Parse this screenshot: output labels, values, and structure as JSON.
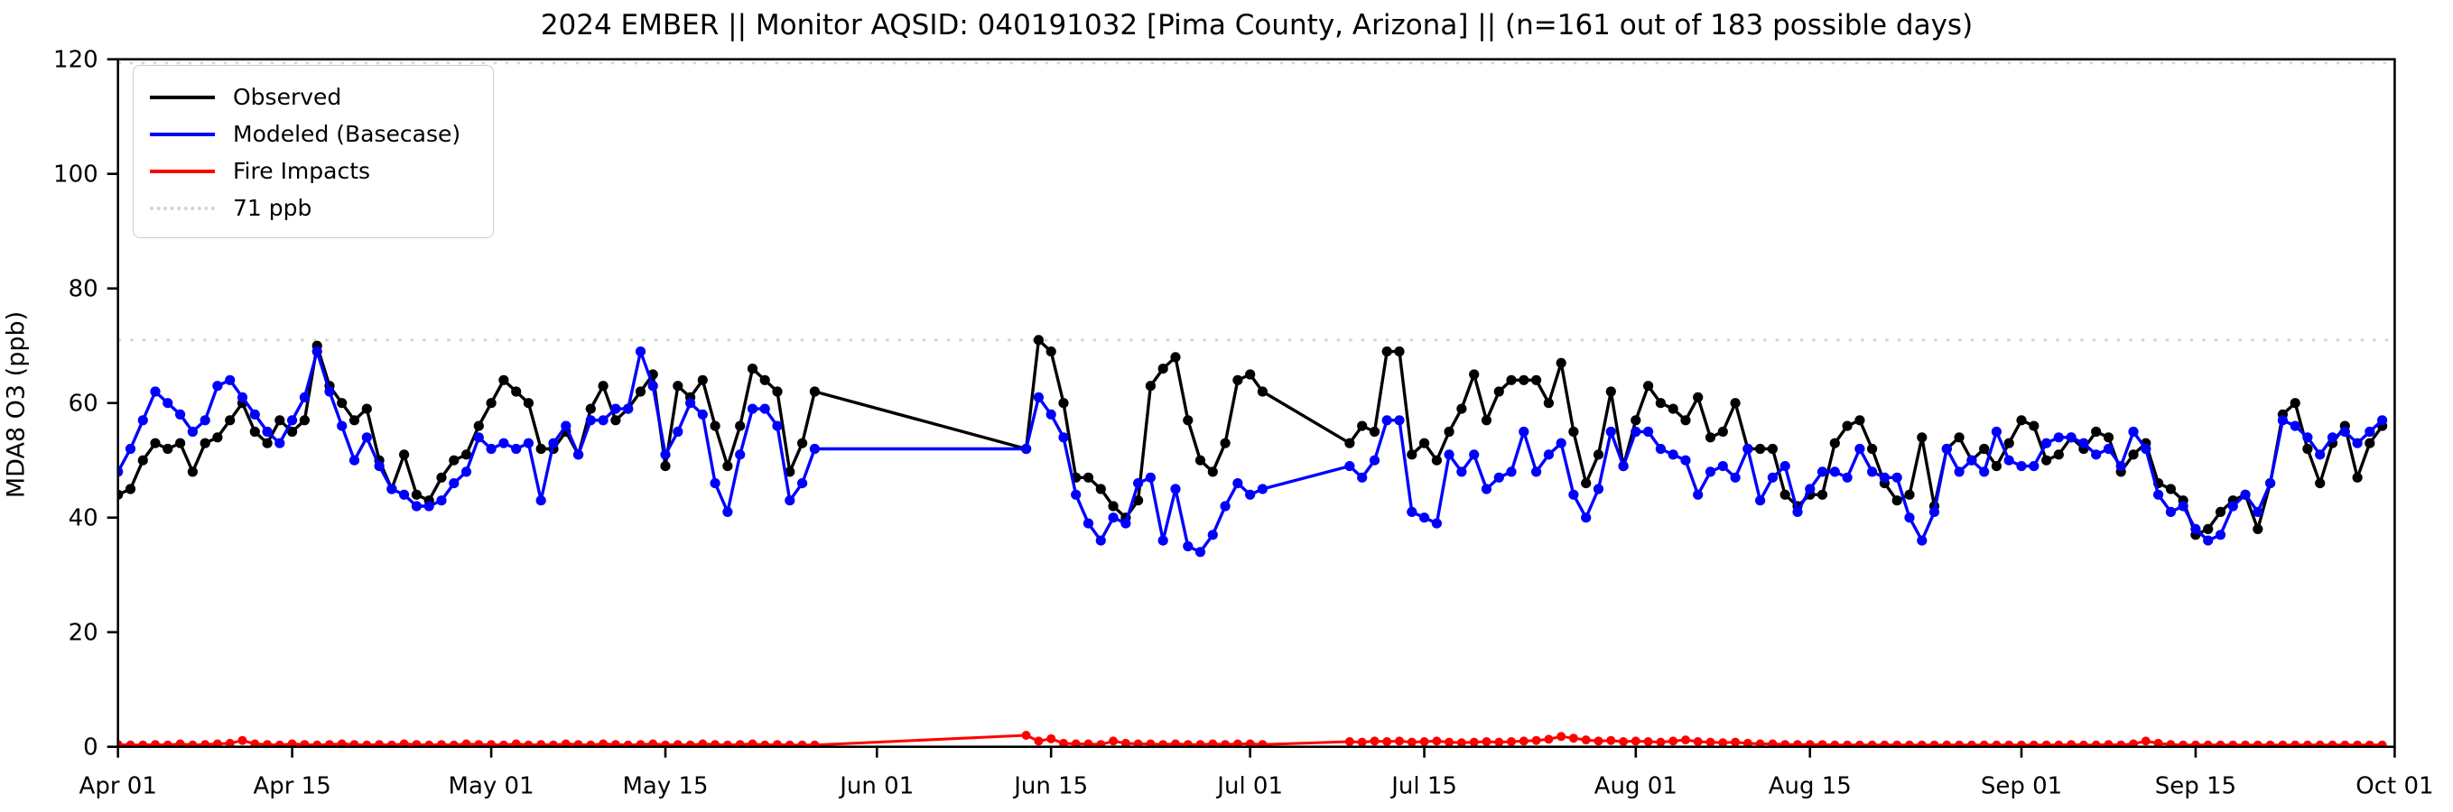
{
  "title": "2024 EMBER || Monitor AQSID: 040191032 [Pima County, Arizona] || (n=161 out of 183 possible days)",
  "axes": {
    "ylabel": "MDA8 O3 (ppb)",
    "ylim": [
      0,
      120
    ],
    "yticks": [
      0,
      20,
      40,
      60,
      80,
      100,
      120
    ],
    "xtick_labels": [
      "Apr 01",
      "Apr 15",
      "May 01",
      "May 15",
      "Jun 01",
      "Jun 15",
      "Jul 01",
      "Jul 15",
      "Aug 01",
      "Aug 15",
      "Sep 01",
      "Sep 15",
      "Oct 01"
    ],
    "xtick_day_index": [
      0,
      14,
      30,
      44,
      61,
      75,
      91,
      105,
      122,
      136,
      153,
      167,
      183
    ],
    "threshold_ppb": 71,
    "threshold_color": "#d4d4d4",
    "grid": false
  },
  "legend": {
    "position": "upper-left",
    "items": [
      {
        "label": "Observed",
        "color": "#000000",
        "style": "solid"
      },
      {
        "label": "Modeled (Basecase)",
        "color": "#0000ff",
        "style": "solid"
      },
      {
        "label": "Fire Impacts",
        "color": "#ff0000",
        "style": "solid"
      },
      {
        "label": "71 ppb",
        "color": "#d4d4d4",
        "style": "dotted"
      }
    ]
  },
  "chart_data": {
    "type": "line",
    "title": "2024 EMBER || Monitor AQSID: 040191032 [Pima County, Arizona] || (n=161 out of 183 possible days)",
    "xlabel": "",
    "ylabel": "MDA8 O3 (ppb)",
    "ylim": [
      0,
      120
    ],
    "x_start_label": "Apr 01",
    "x_end_label": "Oct 01",
    "n_days": 183,
    "n_observed_days": 161,
    "missing_day_ranges": [
      "May 28 - Jun 12",
      "Jul 03 - Jul 08"
    ],
    "threshold_line_ppb": 71,
    "legend_position": "upper left",
    "marker": "circle",
    "series": [
      {
        "name": "Observed",
        "color": "#000000",
        "values": [
          44,
          45,
          50,
          53,
          52,
          53,
          48,
          53,
          54,
          57,
          60,
          55,
          53,
          57,
          55,
          57,
          70,
          63,
          60,
          57,
          59,
          50,
          45,
          51,
          44,
          43,
          47,
          50,
          51,
          56,
          60,
          64,
          62,
          60,
          52,
          52,
          55,
          51,
          59,
          63,
          57,
          59,
          62,
          65,
          49,
          63,
          61,
          64,
          56,
          49,
          56,
          66,
          64,
          62,
          48,
          53,
          62,
          null,
          null,
          null,
          null,
          null,
          null,
          null,
          null,
          null,
          null,
          null,
          null,
          null,
          null,
          null,
          null,
          52,
          71,
          69,
          60,
          47,
          47,
          45,
          42,
          40,
          43,
          63,
          66,
          68,
          57,
          50,
          48,
          53,
          64,
          65,
          62,
          null,
          null,
          null,
          null,
          null,
          null,
          53,
          56,
          55,
          69,
          69,
          51,
          53,
          50,
          55,
          59,
          65,
          57,
          62,
          64,
          64,
          64,
          60,
          67,
          55,
          46,
          51,
          62,
          49,
          57,
          63,
          60,
          59,
          57,
          61,
          54,
          55,
          60,
          52,
          52,
          52,
          44,
          42,
          44,
          44,
          53,
          56,
          57,
          52,
          46,
          43,
          44,
          54,
          42,
          52,
          54,
          50,
          52,
          49,
          53,
          57,
          56,
          50,
          51,
          54,
          52,
          55,
          54,
          48,
          51,
          53,
          46,
          45,
          43,
          37,
          38,
          41,
          43,
          44,
          38,
          46,
          58,
          60,
          52,
          46,
          53,
          56,
          47,
          53,
          56
        ]
      },
      {
        "name": "Modeled (Basecase)",
        "color": "#0000ff",
        "values": [
          48,
          52,
          57,
          62,
          60,
          58,
          55,
          57,
          63,
          64,
          61,
          58,
          55,
          53,
          57,
          61,
          69,
          62,
          56,
          50,
          54,
          49,
          45,
          44,
          42,
          42,
          43,
          46,
          48,
          54,
          52,
          53,
          52,
          53,
          43,
          53,
          56,
          51,
          57,
          57,
          59,
          59,
          69,
          63,
          51,
          55,
          60,
          58,
          46,
          41,
          51,
          59,
          59,
          56,
          43,
          46,
          52,
          null,
          null,
          null,
          null,
          null,
          null,
          null,
          null,
          null,
          null,
          null,
          null,
          null,
          null,
          null,
          null,
          52,
          61,
          58,
          54,
          44,
          39,
          36,
          40,
          39,
          46,
          47,
          36,
          45,
          35,
          34,
          37,
          42,
          46,
          44,
          45,
          null,
          null,
          null,
          null,
          null,
          null,
          49,
          47,
          50,
          57,
          57,
          41,
          40,
          39,
          51,
          48,
          51,
          45,
          47,
          48,
          55,
          48,
          51,
          53,
          44,
          40,
          45,
          55,
          49,
          55,
          55,
          52,
          51,
          50,
          44,
          48,
          49,
          47,
          52,
          43,
          47,
          49,
          41,
          45,
          48,
          48,
          47,
          52,
          48,
          47,
          47,
          40,
          36,
          41,
          52,
          48,
          50,
          48,
          55,
          50,
          49,
          49,
          53,
          54,
          54,
          53,
          51,
          52,
          49,
          55,
          52,
          44,
          41,
          42,
          38,
          36,
          37,
          42,
          44,
          41,
          46,
          57,
          56,
          54,
          51,
          54,
          55,
          53,
          55,
          57
        ]
      },
      {
        "name": "Fire Impacts",
        "color": "#ff0000",
        "values": [
          0.4,
          0.3,
          0.3,
          0.4,
          0.3,
          0.5,
          0.3,
          0.4,
          0.5,
          0.6,
          1.1,
          0.5,
          0.4,
          0.3,
          0.5,
          0.4,
          0.3,
          0.4,
          0.5,
          0.4,
          0.3,
          0.4,
          0.3,
          0.5,
          0.4,
          0.3,
          0.4,
          0.3,
          0.5,
          0.4,
          0.4,
          0.3,
          0.5,
          0.3,
          0.4,
          0.3,
          0.5,
          0.4,
          0.3,
          0.5,
          0.4,
          0.3,
          0.4,
          0.5,
          0.3,
          0.4,
          0.3,
          0.5,
          0.4,
          0.3,
          0.4,
          0.5,
          0.3,
          0.4,
          0.3,
          0.3,
          0.3,
          null,
          null,
          null,
          null,
          null,
          null,
          null,
          null,
          null,
          null,
          null,
          null,
          null,
          null,
          null,
          null,
          2.0,
          1.0,
          1.4,
          0.6,
          0.5,
          0.5,
          0.4,
          1.0,
          0.6,
          0.5,
          0.5,
          0.4,
          0.5,
          0.4,
          0.4,
          0.5,
          0.4,
          0.5,
          0.5,
          0.4,
          null,
          null,
          null,
          null,
          null,
          null,
          0.9,
          0.8,
          1.0,
          0.9,
          1.0,
          0.8,
          0.9,
          1.0,
          0.8,
          0.7,
          0.8,
          0.9,
          0.8,
          0.9,
          1.0,
          1.1,
          1.3,
          1.8,
          1.5,
          1.2,
          1.0,
          1.1,
          0.9,
          1.0,
          0.9,
          0.8,
          1.0,
          1.2,
          0.9,
          0.8,
          0.7,
          0.8,
          0.6,
          0.5,
          0.5,
          0.4,
          0.4,
          0.4,
          0.4,
          0.3,
          0.3,
          0.3,
          0.3,
          0.3,
          0.3,
          0.3,
          0.3,
          0.3,
          0.3,
          0.3,
          0.3,
          0.3,
          0.3,
          0.3,
          0.3,
          0.3,
          0.3,
          0.3,
          0.4,
          0.3,
          0.3,
          0.4,
          0.3,
          0.5,
          1.0,
          0.6,
          0.4,
          0.3,
          0.3,
          0.3,
          0.3,
          0.3,
          0.3,
          0.3,
          0.3,
          0.3,
          0.3,
          0.3,
          0.3,
          0.3,
          0.3,
          0.3,
          0.3,
          0.3
        ]
      }
    ]
  }
}
